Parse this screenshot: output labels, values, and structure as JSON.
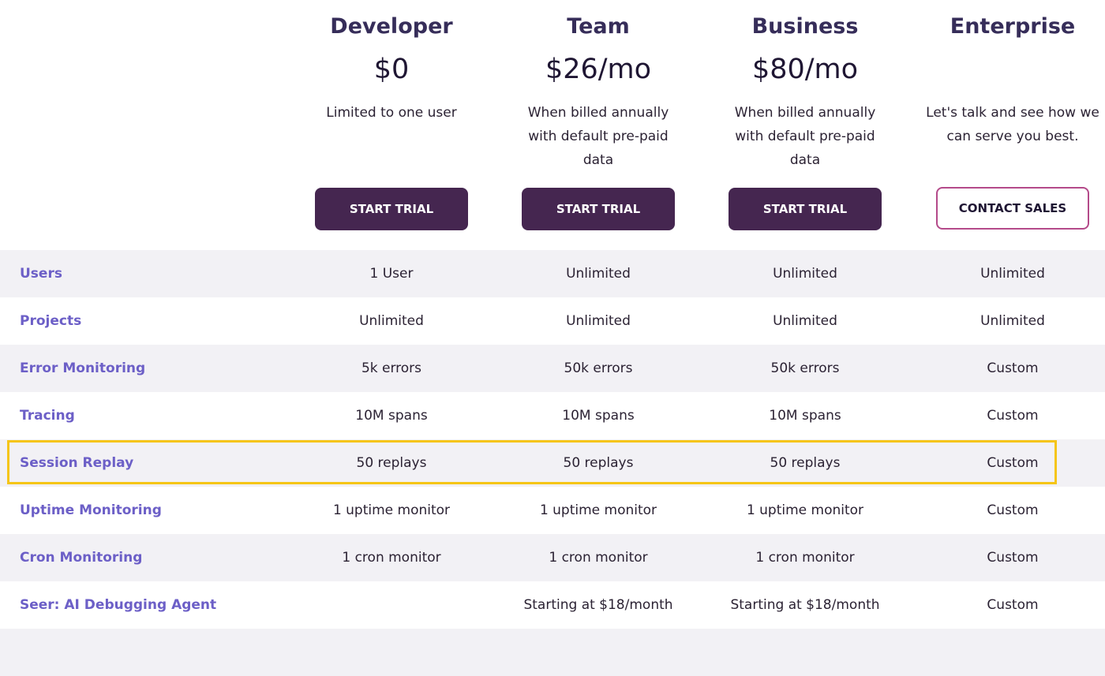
{
  "plans": [
    {
      "name": "Developer",
      "price": "$0",
      "description": "Limited to one user",
      "button": "START TRIAL"
    },
    {
      "name": "Team",
      "price": "$26/mo",
      "description": "When billed annually with default pre-paid data",
      "button": "START TRIAL"
    },
    {
      "name": "Business",
      "price": "$80/mo",
      "description": "When billed annually with default pre-paid data",
      "button": "START TRIAL"
    },
    {
      "name": "Enterprise",
      "price": null,
      "description": "Let's talk and see how we can serve you best.",
      "button": "CONTACT SALES"
    }
  ],
  "table": {
    "rows": [
      {
        "feature": "Users",
        "cells": [
          "1 User",
          "Unlimited",
          "Unlimited",
          "Unlimited"
        ]
      },
      {
        "feature": "Projects",
        "cells": [
          "Unlimited",
          "Unlimited",
          "Unlimited",
          "Unlimited"
        ]
      },
      {
        "feature": "Error Monitoring",
        "cells": [
          "5k errors",
          "50k errors",
          "50k errors",
          "Custom"
        ]
      },
      {
        "feature": "Tracing",
        "cells": [
          "10M spans",
          "10M spans",
          "10M spans",
          "Custom"
        ]
      },
      {
        "feature": "Session Replay",
        "cells": [
          "50 replays",
          "50 replays",
          "50 replays",
          "Custom"
        ],
        "highlighted": true
      },
      {
        "feature": "Uptime Monitoring",
        "cells": [
          "1 uptime monitor",
          "1 uptime monitor",
          "1 uptime monitor",
          "Custom"
        ]
      },
      {
        "feature": "Cron Monitoring",
        "cells": [
          "1 cron monitor",
          "1 cron monitor",
          "1 cron monitor",
          "Custom"
        ]
      },
      {
        "feature": "Seer: AI Debugging Agent",
        "cells": [
          null,
          "Starting at $18/month",
          "Starting at $18/month",
          "Custom"
        ]
      }
    ]
  }
}
